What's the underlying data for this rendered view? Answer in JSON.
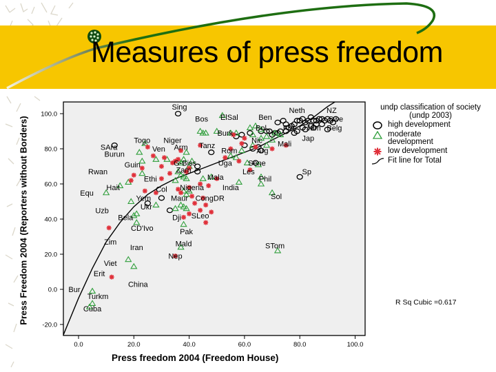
{
  "slide": {
    "title": "Measures of press freedom",
    "colors": {
      "band": "#f7c600",
      "swoosh": "#1e6e12",
      "plot_bg": "#efefef",
      "high": "#000000",
      "moderate": "#2e9e3a",
      "low": "#e0303a"
    }
  },
  "chart_data": {
    "type": "scatter",
    "title": "",
    "xlabel": "Press freedom 2004 (Freedom House)",
    "ylabel": "Press Freedom 2004 (Reporters without Borders)",
    "xlim": [
      -5.5,
      103.5
    ],
    "ylim": [
      -26,
      106
    ],
    "xticks": [
      "0.0",
      "20.0",
      "40.0",
      "60.0",
      "80.0",
      "100.0"
    ],
    "yticks": [
      "-20.0",
      "0.0",
      "20.0",
      "40.0",
      "60.0",
      "80.0",
      "100.0"
    ],
    "grid": false,
    "legend_position": "right",
    "legend": {
      "title": "undp classification of society (undp 2003)",
      "entries": [
        {
          "label": "high development",
          "symbol": "circle"
        },
        {
          "label": "moderate development",
          "symbol": "triangle"
        },
        {
          "label": "low development",
          "symbol": "star"
        },
        {
          "label": "Fit line for Total",
          "symbol": "line"
        }
      ]
    },
    "annotation": "R Sq Cubic =0.617",
    "fit_line": {
      "type": "cubic",
      "points": [
        [
          -5.5,
          -26
        ],
        [
          0,
          -5
        ],
        [
          5,
          12
        ],
        [
          10,
          27
        ],
        [
          15,
          38
        ],
        [
          20,
          47
        ],
        [
          25,
          54
        ],
        [
          30,
          59
        ],
        [
          35,
          63
        ],
        [
          40,
          66
        ],
        [
          45,
          69
        ],
        [
          50,
          72
        ],
        [
          55,
          75
        ],
        [
          60,
          78
        ],
        [
          65,
          81
        ],
        [
          70,
          85
        ],
        [
          75,
          89
        ],
        [
          80,
          93
        ],
        [
          85,
          98
        ],
        [
          90,
          104
        ],
        [
          93,
          107
        ]
      ]
    },
    "series": [
      {
        "name": "high development",
        "points": [
          [
            36,
            100
          ],
          [
            48,
            78
          ],
          [
            43,
            67
          ],
          [
            43,
            70
          ],
          [
            30,
            52
          ],
          [
            25,
            49
          ],
          [
            33,
            45
          ],
          [
            60,
            82
          ],
          [
            63,
            80
          ],
          [
            65,
            81
          ],
          [
            64,
            72
          ],
          [
            66,
            90
          ],
          [
            68,
            90
          ],
          [
            66,
            79
          ],
          [
            80,
            64
          ],
          [
            72,
            95
          ],
          [
            74,
            96
          ],
          [
            75,
            94
          ],
          [
            77,
            93
          ],
          [
            78,
            94
          ],
          [
            79,
            96
          ],
          [
            80,
            96
          ],
          [
            81,
            97
          ],
          [
            82,
            95
          ],
          [
            83,
            96
          ],
          [
            84,
            98
          ],
          [
            85,
            96
          ],
          [
            86,
            94
          ],
          [
            87,
            97
          ],
          [
            88,
            97
          ],
          [
            89,
            96
          ],
          [
            90,
            97
          ],
          [
            91,
            96
          ],
          [
            76,
            92
          ],
          [
            79,
            90
          ],
          [
            82,
            91
          ],
          [
            85,
            92
          ],
          [
            88,
            94
          ],
          [
            90,
            91
          ],
          [
            72,
            89
          ],
          [
            70,
            88
          ],
          [
            73,
            90
          ],
          [
            75,
            90
          ],
          [
            78,
            89
          ],
          [
            81,
            92
          ],
          [
            84,
            93
          ],
          [
            62,
            89
          ],
          [
            57,
            87
          ],
          [
            59,
            88
          ],
          [
            69,
            90
          ],
          [
            71,
            89
          ],
          [
            86,
            96
          ],
          [
            13,
            82
          ],
          [
            92,
            95
          ],
          [
            93,
            97
          ]
        ]
      },
      {
        "name": "moderate development",
        "points": [
          [
            52,
            99
          ],
          [
            44,
            90
          ],
          [
            45,
            89
          ],
          [
            46,
            89
          ],
          [
            50,
            90
          ],
          [
            55,
            89
          ],
          [
            57,
            89
          ],
          [
            62,
            92
          ],
          [
            64,
            93
          ],
          [
            66,
            91
          ],
          [
            63,
            88
          ],
          [
            68,
            87
          ],
          [
            71,
            89
          ],
          [
            73,
            88
          ],
          [
            66,
            86
          ],
          [
            70,
            85
          ],
          [
            68,
            82
          ],
          [
            63,
            82
          ],
          [
            59,
            79
          ],
          [
            57,
            75
          ],
          [
            55,
            76
          ],
          [
            61,
            72
          ],
          [
            65,
            71
          ],
          [
            24,
            83
          ],
          [
            22,
            78
          ],
          [
            39,
            78
          ],
          [
            23,
            73
          ],
          [
            28,
            74
          ],
          [
            32,
            74
          ],
          [
            36,
            73
          ],
          [
            37,
            72
          ],
          [
            38,
            74
          ],
          [
            41,
            73
          ],
          [
            40,
            70
          ],
          [
            36,
            67
          ],
          [
            37,
            65
          ],
          [
            38,
            64
          ],
          [
            39,
            63
          ],
          [
            18,
            61
          ],
          [
            23,
            66
          ],
          [
            35,
            62
          ],
          [
            45,
            63
          ],
          [
            48,
            64
          ],
          [
            58,
            61
          ],
          [
            66,
            64
          ],
          [
            66,
            60
          ],
          [
            70,
            55
          ],
          [
            38,
            56
          ],
          [
            40,
            56
          ],
          [
            39,
            54
          ],
          [
            37,
            48
          ],
          [
            38,
            47
          ],
          [
            39,
            46
          ],
          [
            28,
            48
          ],
          [
            35,
            46
          ],
          [
            15,
            59
          ],
          [
            10,
            55
          ],
          [
            19,
            50
          ],
          [
            20,
            42
          ],
          [
            21,
            43
          ],
          [
            21,
            38
          ],
          [
            38,
            37
          ],
          [
            37,
            24
          ],
          [
            20,
            13
          ],
          [
            18,
            17
          ],
          [
            5,
            -1
          ],
          [
            5,
            -8
          ],
          [
            4,
            -10
          ],
          [
            72,
            22
          ]
        ]
      },
      {
        "name": "low development",
        "points": [
          [
            25,
            81
          ],
          [
            27,
            76
          ],
          [
            37,
            79
          ],
          [
            44,
            82
          ],
          [
            31,
            75
          ],
          [
            30,
            70
          ],
          [
            34,
            72
          ],
          [
            35,
            73
          ],
          [
            36,
            74
          ],
          [
            40,
            69
          ],
          [
            39,
            67
          ],
          [
            23,
            69
          ],
          [
            20,
            65
          ],
          [
            19,
            62
          ],
          [
            24,
            56
          ],
          [
            28,
            55
          ],
          [
            36,
            57
          ],
          [
            40,
            58
          ],
          [
            44,
            60
          ],
          [
            47,
            59
          ],
          [
            37,
            55
          ],
          [
            41,
            53
          ],
          [
            45,
            52
          ],
          [
            46,
            48
          ],
          [
            42,
            49
          ],
          [
            44,
            45
          ],
          [
            40,
            43
          ],
          [
            48,
            44
          ],
          [
            46,
            38
          ],
          [
            38,
            41
          ],
          [
            11,
            35
          ],
          [
            35,
            19
          ],
          [
            12,
            7
          ],
          [
            30,
            63
          ],
          [
            33,
            66
          ],
          [
            56,
            88
          ],
          [
            60,
            86
          ],
          [
            64,
            81
          ],
          [
            70,
            80
          ],
          [
            75,
            82
          ],
          [
            59,
            83
          ],
          [
            55,
            80
          ],
          [
            53,
            75
          ],
          [
            58,
            73
          ],
          [
            62,
            68
          ],
          [
            50,
            63
          ]
        ]
      }
    ],
    "point_labels": [
      {
        "text": "Sing",
        "x": 36.5,
        "y": 104
      },
      {
        "text": "Bos",
        "x": 44.5,
        "y": 97
      },
      {
        "text": "ElSal",
        "x": 54.5,
        "y": 98
      },
      {
        "text": "Ben",
        "x": 67.5,
        "y": 98
      },
      {
        "text": "Neth",
        "x": 79,
        "y": 102
      },
      {
        "text": "NZ",
        "x": 91.5,
        "y": 102
      },
      {
        "text": "Swe",
        "x": 93,
        "y": 97
      },
      {
        "text": "Belg",
        "x": 92.5,
        "y": 92
      },
      {
        "text": "Jam",
        "x": 85,
        "y": 92
      },
      {
        "text": "Fra",
        "x": 76,
        "y": 92
      },
      {
        "text": "Bol",
        "x": 66,
        "y": 92
      },
      {
        "text": "Jap",
        "x": 83,
        "y": 86
      },
      {
        "text": "Burk",
        "x": 53,
        "y": 89
      },
      {
        "text": "Nic",
        "x": 64.5,
        "y": 85
      },
      {
        "text": "Mali",
        "x": 74.5,
        "y": 83
      },
      {
        "text": "Tanz",
        "x": 46.5,
        "y": 82
      },
      {
        "text": "Rom",
        "x": 54.5,
        "y": 79
      },
      {
        "text": "Arg",
        "x": 66.5,
        "y": 79
      },
      {
        "text": "Uga",
        "x": 53,
        "y": 72
      },
      {
        "text": "Sene",
        "x": 64.5,
        "y": 72
      },
      {
        "text": "Les",
        "x": 61.5,
        "y": 67
      },
      {
        "text": "Sp",
        "x": 82.5,
        "y": 67
      },
      {
        "text": "Phil",
        "x": 67.5,
        "y": 63
      },
      {
        "text": "Sol",
        "x": 71.5,
        "y": 53
      },
      {
        "text": "Mala",
        "x": 49.5,
        "y": 64
      },
      {
        "text": "Nigeria",
        "x": 41,
        "y": 58
      },
      {
        "text": "India",
        "x": 55,
        "y": 58
      },
      {
        "text": "CongDR",
        "x": 47.5,
        "y": 52
      },
      {
        "text": "SLeo",
        "x": 44,
        "y": 42
      },
      {
        "text": "Niger",
        "x": 34,
        "y": 85
      },
      {
        "text": "Togo",
        "x": 23,
        "y": 85
      },
      {
        "text": "SAra",
        "x": 11,
        "y": 81
      },
      {
        "text": "Burun",
        "x": 13,
        "y": 77
      },
      {
        "text": "Ven",
        "x": 29,
        "y": 80
      },
      {
        "text": "Arm",
        "x": 37,
        "y": 81
      },
      {
        "text": "Guin",
        "x": 19.5,
        "y": 71
      },
      {
        "text": "G-Biss",
        "x": 38.5,
        "y": 72
      },
      {
        "text": "Zam",
        "x": 38,
        "y": 68
      },
      {
        "text": "Rwan",
        "x": 7,
        "y": 67
      },
      {
        "text": "Ethi",
        "x": 26,
        "y": 63
      },
      {
        "text": "Hait",
        "x": 12.5,
        "y": 58
      },
      {
        "text": "Col",
        "x": 30,
        "y": 57
      },
      {
        "text": "Maur",
        "x": 36.5,
        "y": 52
      },
      {
        "text": "Equ",
        "x": 3,
        "y": 55
      },
      {
        "text": "Yem",
        "x": 23.5,
        "y": 52
      },
      {
        "text": "Ukr",
        "x": 24.5,
        "y": 47
      },
      {
        "text": "Uzb",
        "x": 8.5,
        "y": 45
      },
      {
        "text": "Bela",
        "x": 17,
        "y": 41
      },
      {
        "text": "Dji",
        "x": 35.5,
        "y": 41
      },
      {
        "text": "CD'Ivo",
        "x": 23,
        "y": 35
      },
      {
        "text": "Pak",
        "x": 39,
        "y": 33
      },
      {
        "text": "Zim",
        "x": 11.5,
        "y": 27
      },
      {
        "text": "Mald",
        "x": 38,
        "y": 26
      },
      {
        "text": "Iran",
        "x": 21,
        "y": 24
      },
      {
        "text": "Nep",
        "x": 35,
        "y": 19
      },
      {
        "text": "STom",
        "x": 71,
        "y": 25
      },
      {
        "text": "Viet",
        "x": 11.5,
        "y": 15
      },
      {
        "text": "Erit",
        "x": 7.5,
        "y": 9
      },
      {
        "text": "China",
        "x": 21.5,
        "y": 3
      },
      {
        "text": "Bur",
        "x": -1.5,
        "y": 0
      },
      {
        "text": "Turkm",
        "x": 7,
        "y": -4
      },
      {
        "text": "Cuba",
        "x": 5,
        "y": -11
      }
    ]
  }
}
